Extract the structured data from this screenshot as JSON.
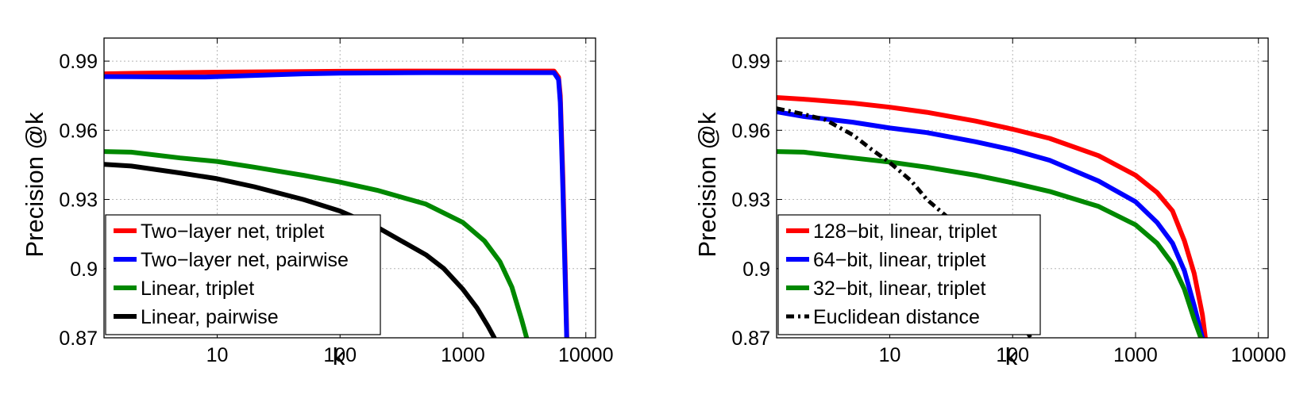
{
  "chart_data": [
    {
      "type": "line",
      "title": "",
      "xlabel": "k",
      "ylabel": "Precision @k",
      "xscale": "log",
      "xlim": [
        1.2,
        12000
      ],
      "ylim": [
        0.87,
        1.0
      ],
      "xticks": [
        10,
        100,
        1000,
        10000
      ],
      "xtick_labels": [
        "10",
        "100",
        "1000",
        "10000"
      ],
      "yticks": [
        0.87,
        0.9,
        0.93,
        0.96,
        0.99
      ],
      "ytick_labels": [
        "0.87",
        "0.9",
        "0.93",
        "0.96",
        "0.99"
      ],
      "grid": true,
      "legend_position": "bottom-left",
      "series": [
        {
          "name": "Two−layer net, triplet",
          "color": "#ff0000",
          "x": [
            1.2,
            2,
            5,
            10,
            50,
            100,
            500,
            1000,
            3000,
            5500,
            6000,
            6200,
            6500,
            6800,
            7000
          ],
          "y": [
            0.9845,
            0.9847,
            0.985,
            0.9852,
            0.9855,
            0.9856,
            0.9857,
            0.9857,
            0.9857,
            0.9857,
            0.983,
            0.975,
            0.94,
            0.9,
            0.87
          ]
        },
        {
          "name": "Two−layer net, pairwise",
          "color": "#0000ff",
          "x": [
            1.2,
            2,
            5,
            8,
            20,
            50,
            100,
            500,
            1000,
            3000,
            5500,
            6000,
            6200,
            6500,
            6800,
            7000
          ],
          "y": [
            0.9833,
            0.9832,
            0.9831,
            0.9831,
            0.9838,
            0.9845,
            0.9848,
            0.985,
            0.985,
            0.985,
            0.985,
            0.982,
            0.972,
            0.935,
            0.895,
            0.868
          ]
        },
        {
          "name": "Linear, triplet",
          "color": "#008800",
          "x": [
            1.2,
            2,
            5,
            10,
            20,
            50,
            100,
            200,
            500,
            1000,
            1500,
            2000,
            2500,
            3000,
            3300
          ],
          "y": [
            0.9508,
            0.9505,
            0.948,
            0.9465,
            0.944,
            0.9405,
            0.9375,
            0.934,
            0.928,
            0.92,
            0.912,
            0.903,
            0.892,
            0.878,
            0.87
          ]
        },
        {
          "name": "Linear, pairwise",
          "color": "#000000",
          "x": [
            1.2,
            2,
            5,
            10,
            20,
            50,
            100,
            200,
            500,
            700,
            1000,
            1300,
            1600,
            1800
          ],
          "y": [
            0.9452,
            0.9445,
            0.9415,
            0.939,
            0.9355,
            0.93,
            0.925,
            0.918,
            0.906,
            0.9,
            0.891,
            0.883,
            0.875,
            0.87
          ]
        }
      ]
    },
    {
      "type": "line",
      "title": "",
      "xlabel": "k",
      "ylabel": "Precision @k",
      "xscale": "log",
      "xlim": [
        1.2,
        12000
      ],
      "ylim": [
        0.87,
        1.0
      ],
      "xticks": [
        10,
        100,
        1000,
        10000
      ],
      "xtick_labels": [
        "10",
        "100",
        "1000",
        "10000"
      ],
      "yticks": [
        0.87,
        0.9,
        0.93,
        0.96,
        0.99
      ],
      "ytick_labels": [
        "0.87",
        "0.9",
        "0.93",
        "0.96",
        "0.99"
      ],
      "grid": true,
      "legend_position": "bottom-left",
      "series": [
        {
          "name": "128−bit, linear, triplet",
          "color": "#ff0000",
          "x": [
            1.2,
            2,
            5,
            10,
            20,
            50,
            100,
            200,
            500,
            1000,
            1500,
            2000,
            2500,
            3000,
            3500,
            3700
          ],
          "y": [
            0.9742,
            0.9735,
            0.9718,
            0.97,
            0.9678,
            0.964,
            0.9605,
            0.9565,
            0.949,
            0.9405,
            0.933,
            0.925,
            0.912,
            0.898,
            0.88,
            0.87
          ]
        },
        {
          "name": "64−bit, linear, triplet",
          "color": "#0000ff",
          "x": [
            1.2,
            2,
            5,
            10,
            20,
            50,
            100,
            200,
            500,
            1000,
            1500,
            2000,
            2500,
            3000,
            3500
          ],
          "y": [
            0.968,
            0.966,
            0.9635,
            0.961,
            0.959,
            0.955,
            0.9515,
            0.947,
            0.938,
            0.929,
            0.92,
            0.911,
            0.899,
            0.884,
            0.87
          ]
        },
        {
          "name": "32−bit, linear, triplet",
          "color": "#008800",
          "x": [
            1.2,
            2,
            5,
            10,
            20,
            50,
            100,
            200,
            500,
            1000,
            1500,
            2000,
            2500,
            3000,
            3400
          ],
          "y": [
            0.9508,
            0.9505,
            0.948,
            0.9462,
            0.944,
            0.9405,
            0.9372,
            0.9335,
            0.927,
            0.919,
            0.911,
            0.902,
            0.891,
            0.878,
            0.87
          ]
        },
        {
          "name": "Euclidean distance",
          "color": "#000000",
          "dash": "dashdot",
          "x": [
            1.2,
            2,
            3,
            5,
            7,
            10,
            15,
            20,
            30,
            40,
            60,
            80,
            100,
            120,
            140
          ],
          "y": [
            0.9695,
            0.967,
            0.9645,
            0.958,
            0.952,
            0.946,
            0.938,
            0.93,
            0.922,
            0.917,
            0.905,
            0.894,
            0.884,
            0.876,
            0.87
          ]
        }
      ]
    }
  ]
}
